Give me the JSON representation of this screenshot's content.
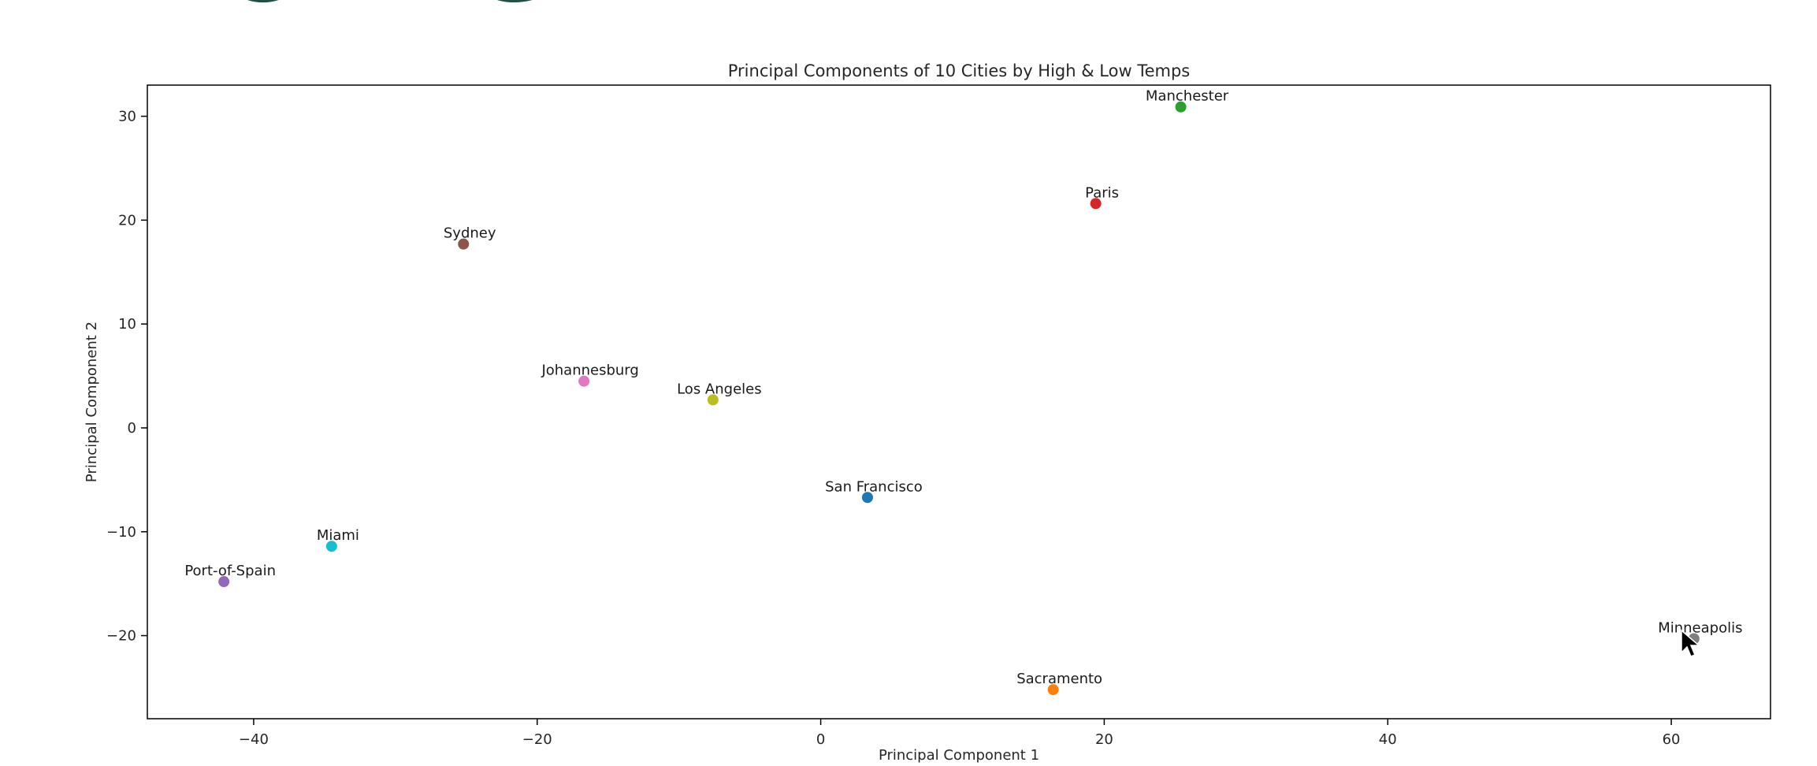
{
  "chart_data": {
    "type": "scatter",
    "title": "Principal Components of 10 Cities by High & Low Temps",
    "xlabel": "Principal Component 1",
    "ylabel": "Principal Component 2",
    "xlim": [
      -47.5,
      67
    ],
    "ylim": [
      -28,
      33
    ],
    "xticks": [
      -40,
      -20,
      0,
      20,
      40,
      60
    ],
    "yticks": [
      -20,
      -10,
      0,
      10,
      20,
      30
    ],
    "xtick_labels": [
      "−40",
      "−20",
      "0",
      "20",
      "40",
      "60"
    ],
    "ytick_labels": [
      "−20",
      "−10",
      "0",
      "10",
      "20",
      "30"
    ],
    "grid": false,
    "points": [
      {
        "label": "San Francisco",
        "x": 3.3,
        "y": -6.7,
        "color": "#1f77b4"
      },
      {
        "label": "Sacramento",
        "x": 16.4,
        "y": -25.2,
        "color": "#ff7f0e"
      },
      {
        "label": "Manchester",
        "x": 25.4,
        "y": 30.9,
        "color": "#2ca02c"
      },
      {
        "label": "Paris",
        "x": 19.4,
        "y": 21.6,
        "color": "#d62728"
      },
      {
        "label": "Port-of-Spain",
        "x": -42.1,
        "y": -14.8,
        "color": "#9467bd"
      },
      {
        "label": "Sydney",
        "x": -25.2,
        "y": 17.7,
        "color": "#8c564b"
      },
      {
        "label": "Johannesburg",
        "x": -16.7,
        "y": 4.5,
        "color": "#e377c2"
      },
      {
        "label": "Minneapolis",
        "x": 61.6,
        "y": -20.3,
        "color": "#7f7f7f"
      },
      {
        "label": "Los Angeles",
        "x": -7.6,
        "y": 2.7,
        "color": "#bcbd22"
      },
      {
        "label": "Miami",
        "x": -34.5,
        "y": -11.4,
        "color": "#17becf"
      }
    ]
  }
}
